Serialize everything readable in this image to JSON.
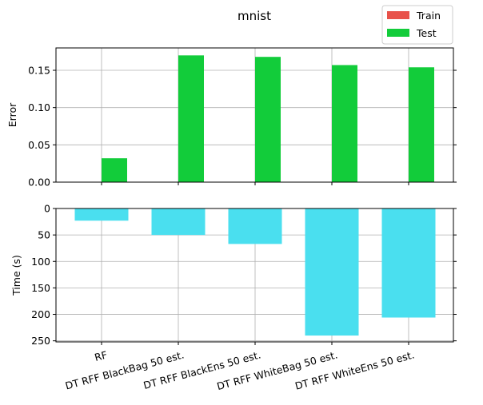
{
  "chart_data": {
    "title": "mnist",
    "categories": [
      "RF",
      "DT RFF BlackBag 50 est.",
      "DT RFF BlackEns 50 est.",
      "DT RFF WhiteBag 50 est.",
      "DT RFF WhiteEns 50 est."
    ],
    "legend": {
      "placement": "top-right",
      "entries": [
        {
          "name": "Train",
          "color": "#e8524a"
        },
        {
          "name": "Test",
          "color": "#12cc3a"
        }
      ]
    },
    "panels": [
      {
        "id": "error",
        "type": "bar",
        "ylabel": "Error",
        "ylim": [
          0,
          0.18
        ],
        "yticks": [
          0.0,
          0.05,
          0.1,
          0.15
        ],
        "ytick_labels": [
          "0.00",
          "0.05",
          "0.10",
          "0.15"
        ],
        "grid": true,
        "series": [
          {
            "name": "Train",
            "color": "#e8524a",
            "values": [
              0,
              0,
              0,
              0,
              0
            ]
          },
          {
            "name": "Test",
            "color": "#12cc3a",
            "values": [
              0.032,
              0.17,
              0.168,
              0.157,
              0.154
            ]
          }
        ]
      },
      {
        "id": "time",
        "type": "bar",
        "ylabel": "Time (s)",
        "ylim": [
          0,
          252
        ],
        "inverted_y": true,
        "yticks": [
          0,
          50,
          100,
          150,
          200,
          250
        ],
        "ytick_labels": [
          "0",
          "50",
          "100",
          "150",
          "200",
          "250"
        ],
        "grid": true,
        "series": [
          {
            "color": "#4adfef",
            "values": [
              23,
              50,
              67,
              240,
              206
            ]
          }
        ]
      }
    ]
  }
}
